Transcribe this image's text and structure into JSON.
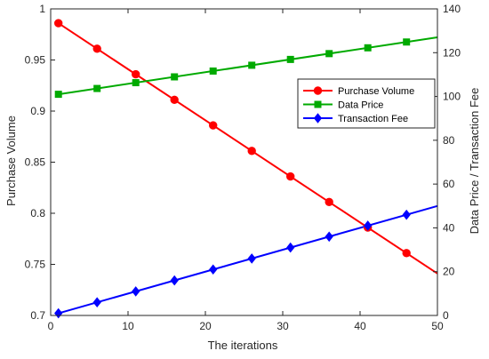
{
  "chart_data": {
    "type": "line",
    "title": "",
    "xlabel": "The iterations",
    "ylabel_left": "Purchase Volume",
    "ylabel_right": "Data Price / Transaction Fee",
    "xlim": [
      0,
      50
    ],
    "ylim_left": [
      0.7,
      1.0
    ],
    "ylim_right": [
      0,
      140
    ],
    "xticks": [
      0,
      10,
      20,
      30,
      40,
      50
    ],
    "yticks_left": [
      0.7,
      0.75,
      0.8,
      0.85,
      0.9,
      0.95,
      1
    ],
    "yticks_right": [
      0,
      20,
      40,
      60,
      80,
      100,
      120,
      140
    ],
    "grid": false,
    "legend_position": "right-center",
    "series": [
      {
        "name": "Purchase Volume",
        "axis": "left",
        "color": "#ff0000",
        "marker": "circle",
        "marker_x": [
          1,
          6,
          11,
          16,
          21,
          26,
          31,
          36,
          41,
          46
        ],
        "x": [
          1,
          50
        ],
        "values": [
          0.986,
          0.741
        ]
      },
      {
        "name": "Data Price",
        "axis": "right",
        "color": "#00aa00",
        "marker": "square",
        "marker_x": [
          1,
          6,
          11,
          16,
          21,
          26,
          31,
          36,
          41,
          46
        ],
        "x": [
          1,
          50
        ],
        "values": [
          101,
          127
        ]
      },
      {
        "name": "Transaction Fee",
        "axis": "right",
        "color": "#0000ff",
        "marker": "diamond",
        "marker_x": [
          1,
          6,
          11,
          16,
          21,
          26,
          31,
          36,
          41,
          46
        ],
        "x": [
          1,
          50
        ],
        "values": [
          1,
          50
        ]
      }
    ]
  }
}
